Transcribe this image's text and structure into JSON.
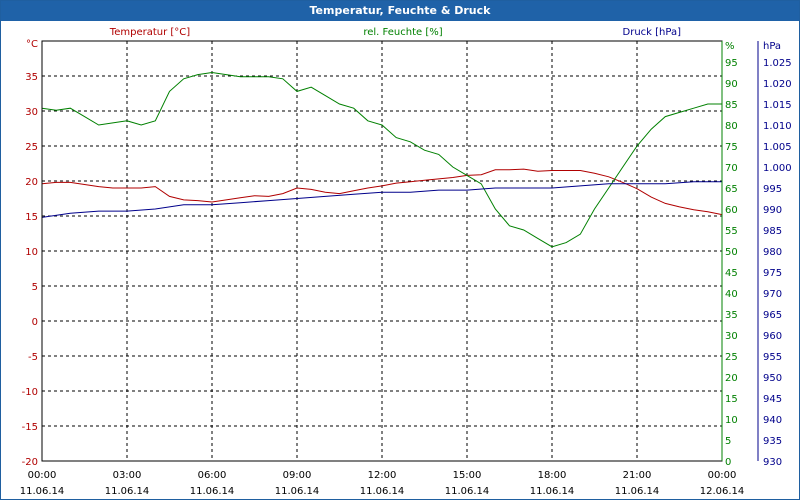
{
  "chart_data": {
    "type": "line",
    "title": "Temperatur, Feuchte & Druck",
    "x_ticks": [
      {
        "time": "00:00",
        "date": "11.06.14"
      },
      {
        "time": "03:00",
        "date": "11.06.14"
      },
      {
        "time": "06:00",
        "date": "11.06.14"
      },
      {
        "time": "09:00",
        "date": "11.06.14"
      },
      {
        "time": "12:00",
        "date": "11.06.14"
      },
      {
        "time": "15:00",
        "date": "11.06.14"
      },
      {
        "time": "18:00",
        "date": "11.06.14"
      },
      {
        "time": "21:00",
        "date": "11.06.14"
      },
      {
        "time": "00:00",
        "date": "12.06.14"
      }
    ],
    "x_range_hours": [
      0,
      24
    ],
    "grid": true,
    "axes": {
      "temperature": {
        "label": "Temperatur [°C]",
        "unit": "°C",
        "min": -20,
        "max": 40,
        "ticks": [
          -20,
          -15,
          -10,
          -5,
          0,
          5,
          10,
          15,
          20,
          25,
          30,
          35
        ],
        "color": "#b00000"
      },
      "humidity": {
        "label": "rel. Feuchte [%]",
        "unit": "%",
        "min": 0,
        "max": 100,
        "ticks": [
          0,
          5,
          10,
          15,
          20,
          25,
          30,
          35,
          40,
          45,
          50,
          55,
          60,
          65,
          70,
          75,
          80,
          85,
          90,
          95
        ],
        "color": "#008000"
      },
      "pressure": {
        "label": "Druck [hPa]",
        "unit": "hPa",
        "min": 930,
        "max": 1030,
        "ticks": [
          "930",
          "935",
          "940",
          "945",
          "950",
          "955",
          "960",
          "965",
          "970",
          "975",
          "980",
          "985",
          "990",
          "995",
          "1.000",
          "1.005",
          "1.010",
          "1.015",
          "1.020",
          "1.025"
        ],
        "color": "#00008b"
      }
    },
    "series": [
      {
        "name": "Temperatur",
        "axis": "temperature",
        "color": "#b00000",
        "points": [
          [
            0,
            19.6
          ],
          [
            0.5,
            19.8
          ],
          [
            1,
            19.8
          ],
          [
            1.5,
            19.5
          ],
          [
            2,
            19.2
          ],
          [
            2.5,
            19.0
          ],
          [
            3,
            19.0
          ],
          [
            3.5,
            19.0
          ],
          [
            4,
            19.2
          ],
          [
            4.5,
            17.8
          ],
          [
            5,
            17.3
          ],
          [
            5.5,
            17.2
          ],
          [
            6,
            17.0
          ],
          [
            6.5,
            17.3
          ],
          [
            7,
            17.6
          ],
          [
            7.5,
            17.9
          ],
          [
            8,
            17.8
          ],
          [
            8.5,
            18.2
          ],
          [
            9,
            19.0
          ],
          [
            9.5,
            18.8
          ],
          [
            10,
            18.4
          ],
          [
            10.5,
            18.2
          ],
          [
            11,
            18.6
          ],
          [
            11.5,
            19.0
          ],
          [
            12,
            19.3
          ],
          [
            12.5,
            19.7
          ],
          [
            13,
            19.9
          ],
          [
            13.5,
            20.1
          ],
          [
            14,
            20.3
          ],
          [
            14.5,
            20.5
          ],
          [
            15,
            20.8
          ],
          [
            15.5,
            20.9
          ],
          [
            16,
            21.6
          ],
          [
            16.5,
            21.6
          ],
          [
            17,
            21.7
          ],
          [
            17.5,
            21.4
          ],
          [
            18,
            21.5
          ],
          [
            18.5,
            21.5
          ],
          [
            19,
            21.5
          ],
          [
            19.5,
            21.1
          ],
          [
            20,
            20.6
          ],
          [
            20.5,
            19.8
          ],
          [
            21,
            18.9
          ],
          [
            21.5,
            17.7
          ],
          [
            22,
            16.8
          ],
          [
            22.5,
            16.3
          ],
          [
            23,
            15.9
          ],
          [
            23.5,
            15.6
          ],
          [
            24,
            15.2
          ]
        ]
      },
      {
        "name": "rel. Feuchte",
        "axis": "humidity",
        "color": "#008000",
        "points": [
          [
            0,
            84
          ],
          [
            0.5,
            83.5
          ],
          [
            1,
            84
          ],
          [
            1.5,
            82
          ],
          [
            2,
            80
          ],
          [
            2.5,
            80.5
          ],
          [
            3,
            81
          ],
          [
            3.5,
            80
          ],
          [
            4,
            81
          ],
          [
            4.5,
            88
          ],
          [
            5,
            91
          ],
          [
            5.5,
            92
          ],
          [
            6,
            92.5
          ],
          [
            6.5,
            92
          ],
          [
            7,
            91.5
          ],
          [
            7.5,
            91.5
          ],
          [
            8,
            91.5
          ],
          [
            8.5,
            91
          ],
          [
            9,
            88
          ],
          [
            9.5,
            89
          ],
          [
            10,
            87
          ],
          [
            10.5,
            85
          ],
          [
            11,
            84
          ],
          [
            11.5,
            81
          ],
          [
            12,
            80
          ],
          [
            12.5,
            77
          ],
          [
            13,
            76
          ],
          [
            13.5,
            74
          ],
          [
            14,
            73
          ],
          [
            14.5,
            70
          ],
          [
            15,
            68
          ],
          [
            15.5,
            66
          ],
          [
            16,
            60
          ],
          [
            16.5,
            56
          ],
          [
            17,
            55
          ],
          [
            17.5,
            53
          ],
          [
            18,
            51
          ],
          [
            18.5,
            52
          ],
          [
            19,
            54
          ],
          [
            19.5,
            60
          ],
          [
            20,
            65
          ],
          [
            20.5,
            70
          ],
          [
            21,
            75
          ],
          [
            21.5,
            79
          ],
          [
            22,
            82
          ],
          [
            22.5,
            83
          ],
          [
            23,
            84
          ],
          [
            23.5,
            85
          ],
          [
            24,
            85
          ]
        ]
      },
      {
        "name": "Druck",
        "axis": "pressure",
        "color": "#00008b",
        "points": [
          [
            0,
            988
          ],
          [
            1,
            989
          ],
          [
            2,
            989.5
          ],
          [
            3,
            989.5
          ],
          [
            4,
            990
          ],
          [
            5,
            991
          ],
          [
            6,
            991
          ],
          [
            7,
            991.5
          ],
          [
            8,
            992
          ],
          [
            9,
            992.5
          ],
          [
            10,
            993
          ],
          [
            11,
            993.5
          ],
          [
            12,
            994
          ],
          [
            13,
            994
          ],
          [
            14,
            994.5
          ],
          [
            15,
            994.5
          ],
          [
            16,
            995
          ],
          [
            17,
            995
          ],
          [
            18,
            995
          ],
          [
            19,
            995.5
          ],
          [
            20,
            996
          ],
          [
            21,
            996
          ],
          [
            22,
            996
          ],
          [
            23,
            996.5
          ],
          [
            24,
            996.5
          ]
        ]
      }
    ]
  }
}
